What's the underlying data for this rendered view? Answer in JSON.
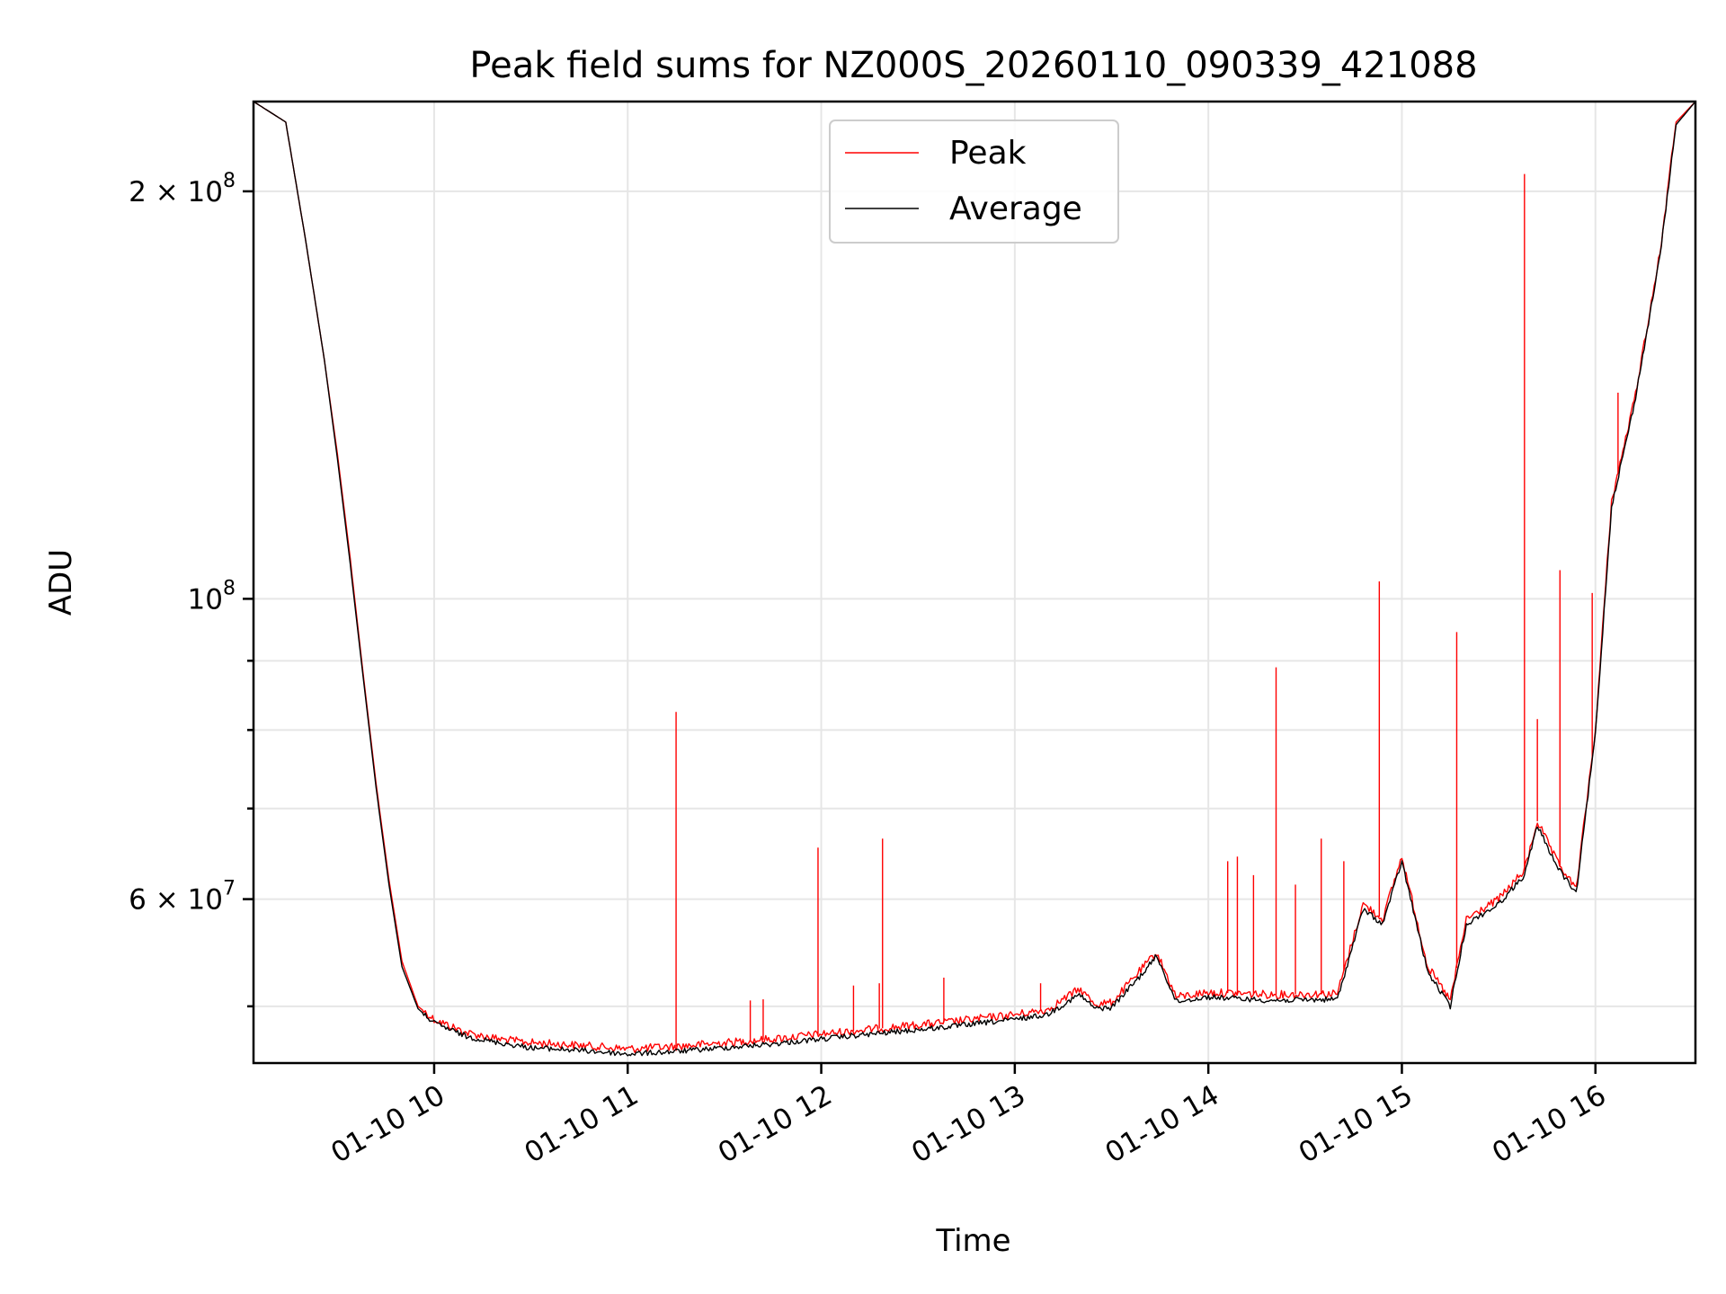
{
  "chart_data": {
    "type": "line",
    "title": "Peak field sums for NZ000S_20260110_090339_421088",
    "xlabel": "Time",
    "ylabel": "ADU",
    "yscale": "log",
    "grid": true,
    "legend_position": "top-center",
    "xlim": [
      "2026-01-10 09:04",
      "2026-01-10 16:31"
    ],
    "ylim": [
      45400000,
      233000000
    ],
    "x_ticks": [
      {
        "value": "2026-01-10 10:00",
        "label": "01-10 10"
      },
      {
        "value": "2026-01-10 11:00",
        "label": "01-10 11"
      },
      {
        "value": "2026-01-10 12:00",
        "label": "01-10 12"
      },
      {
        "value": "2026-01-10 13:00",
        "label": "01-10 13"
      },
      {
        "value": "2026-01-10 14:00",
        "label": "01-10 14"
      },
      {
        "value": "2026-01-10 15:00",
        "label": "01-10 15"
      },
      {
        "value": "2026-01-10 16:00",
        "label": "01-10 16"
      }
    ],
    "y_major_ticks": [
      {
        "value": 60000000,
        "label": "6×10⁷",
        "mantissa": "6",
        "exp": "7"
      },
      {
        "value": 100000000,
        "label": "10⁸",
        "mantissa": "",
        "exp": "8"
      },
      {
        "value": 200000000,
        "label": "2×10⁸",
        "mantissa": "2",
        "exp": "8"
      }
    ],
    "y_minor_ticks": [
      50000000,
      70000000,
      80000000,
      90000000
    ],
    "series": [
      {
        "name": "Peak",
        "color": "#ff0000",
        "x": [
          "2026-01-10 09:04",
          "2026-01-10 09:14",
          "2026-01-10 09:20",
          "2026-01-10 09:26",
          "2026-01-10 09:30",
          "2026-01-10 09:34",
          "2026-01-10 09:38",
          "2026-01-10 09:42",
          "2026-01-10 09:46",
          "2026-01-10 09:50",
          "2026-01-10 09:55",
          "2026-01-10 10:00",
          "2026-01-10 10:10",
          "2026-01-10 10:20",
          "2026-01-10 10:30",
          "2026-01-10 10:45",
          "2026-01-10 11:00",
          "2026-01-10 11:15",
          "2026-01-10 11:30",
          "2026-01-10 11:45",
          "2026-01-10 12:00",
          "2026-01-10 12:20",
          "2026-01-10 12:40",
          "2026-01-10 13:00",
          "2026-01-10 13:10",
          "2026-01-10 13:20",
          "2026-01-10 13:25",
          "2026-01-10 13:30",
          "2026-01-10 13:40",
          "2026-01-10 13:44",
          "2026-01-10 13:50",
          "2026-01-10 14:00",
          "2026-01-10 14:20",
          "2026-01-10 14:40",
          "2026-01-10 14:48",
          "2026-01-10 14:54",
          "2026-01-10 15:00",
          "2026-01-10 15:08",
          "2026-01-10 15:15",
          "2026-01-10 15:20",
          "2026-01-10 15:30",
          "2026-01-10 15:38",
          "2026-01-10 15:42",
          "2026-01-10 15:48",
          "2026-01-10 15:54",
          "2026-01-10 16:00",
          "2026-01-10 16:05",
          "2026-01-10 16:12",
          "2026-01-10 16:20",
          "2026-01-10 16:25",
          "2026-01-10 16:31"
        ],
        "values": [
          233000000,
          225000000,
          185000000,
          150000000,
          128000000,
          107000000,
          88000000,
          73000000,
          62000000,
          54000000,
          50000000,
          48900000,
          47800000,
          47300000,
          47000000,
          46800000,
          46500000,
          46700000,
          47000000,
          47300000,
          47700000,
          48200000,
          48700000,
          49300000,
          49700000,
          51500000,
          50200000,
          50300000,
          53500000,
          54800000,
          50800000,
          51200000,
          51000000,
          51100000,
          59500000,
          58000000,
          64500000,
          53500000,
          50500000,
          58000000,
          60000000,
          63000000,
          68500000,
          64000000,
          61000000,
          80000000,
          118000000,
          140000000,
          180000000,
          225000000,
          233000000
        ],
        "spikes": [
          {
            "x": "2026-01-10 11:15",
            "value": 82500000
          },
          {
            "x": "2026-01-10 11:38",
            "value": 50500000
          },
          {
            "x": "2026-01-10 11:42",
            "value": 50600000
          },
          {
            "x": "2026-01-10 11:59",
            "value": 65500000
          },
          {
            "x": "2026-01-10 12:10",
            "value": 51800000
          },
          {
            "x": "2026-01-10 12:18",
            "value": 52000000
          },
          {
            "x": "2026-01-10 12:19",
            "value": 66500000
          },
          {
            "x": "2026-01-10 12:38",
            "value": 52500000
          },
          {
            "x": "2026-01-10 13:08",
            "value": 52000000
          },
          {
            "x": "2026-01-10 14:06",
            "value": 64000000
          },
          {
            "x": "2026-01-10 14:09",
            "value": 64500000
          },
          {
            "x": "2026-01-10 14:14",
            "value": 62500000
          },
          {
            "x": "2026-01-10 14:21",
            "value": 89000000
          },
          {
            "x": "2026-01-10 14:27",
            "value": 61500000
          },
          {
            "x": "2026-01-10 14:35",
            "value": 66500000
          },
          {
            "x": "2026-01-10 14:42",
            "value": 64000000
          },
          {
            "x": "2026-01-10 14:53",
            "value": 103000000
          },
          {
            "x": "2026-01-10 15:17",
            "value": 94500000
          },
          {
            "x": "2026-01-10 15:38",
            "value": 206000000
          },
          {
            "x": "2026-01-10 15:42",
            "value": 81500000
          },
          {
            "x": "2026-01-10 15:49",
            "value": 105000000
          },
          {
            "x": "2026-01-10 15:59",
            "value": 101000000
          },
          {
            "x": "2026-01-10 16:07",
            "value": 142000000
          }
        ]
      },
      {
        "name": "Average",
        "color": "#000000",
        "x": [
          "2026-01-10 09:04",
          "2026-01-10 09:14",
          "2026-01-10 09:20",
          "2026-01-10 09:26",
          "2026-01-10 09:30",
          "2026-01-10 09:34",
          "2026-01-10 09:38",
          "2026-01-10 09:42",
          "2026-01-10 09:46",
          "2026-01-10 09:50",
          "2026-01-10 09:55",
          "2026-01-10 10:00",
          "2026-01-10 10:10",
          "2026-01-10 10:20",
          "2026-01-10 10:30",
          "2026-01-10 10:45",
          "2026-01-10 11:00",
          "2026-01-10 11:15",
          "2026-01-10 11:30",
          "2026-01-10 11:45",
          "2026-01-10 12:00",
          "2026-01-10 12:20",
          "2026-01-10 12:40",
          "2026-01-10 13:00",
          "2026-01-10 13:10",
          "2026-01-10 13:20",
          "2026-01-10 13:25",
          "2026-01-10 13:30",
          "2026-01-10 13:40",
          "2026-01-10 13:44",
          "2026-01-10 13:50",
          "2026-01-10 14:00",
          "2026-01-10 14:20",
          "2026-01-10 14:40",
          "2026-01-10 14:48",
          "2026-01-10 14:54",
          "2026-01-10 15:00",
          "2026-01-10 15:08",
          "2026-01-10 15:15",
          "2026-01-10 15:20",
          "2026-01-10 15:30",
          "2026-01-10 15:38",
          "2026-01-10 15:42",
          "2026-01-10 15:48",
          "2026-01-10 15:54",
          "2026-01-10 16:00",
          "2026-01-10 16:05",
          "2026-01-10 16:12",
          "2026-01-10 16:20",
          "2026-01-10 16:25",
          "2026-01-10 16:31"
        ],
        "values": [
          233000000,
          225000000,
          185000000,
          150000000,
          127000000,
          106000000,
          87500000,
          72500000,
          61500000,
          53500000,
          49800000,
          48600000,
          47500000,
          47000000,
          46600000,
          46400000,
          46100000,
          46300000,
          46600000,
          46900000,
          47300000,
          47800000,
          48300000,
          48900000,
          49300000,
          51000000,
          49800000,
          49900000,
          53000000,
          54500000,
          50400000,
          50800000,
          50500000,
          50600000,
          59000000,
          57500000,
          64000000,
          53000000,
          50000000,
          57500000,
          59500000,
          62500000,
          68000000,
          63500000,
          60500000,
          79500000,
          117000000,
          139000000,
          179000000,
          224000000,
          233000000
        ]
      }
    ],
    "legend": [
      {
        "name": "Peak",
        "color": "#ff0000"
      },
      {
        "name": "Average",
        "color": "#000000"
      }
    ]
  }
}
